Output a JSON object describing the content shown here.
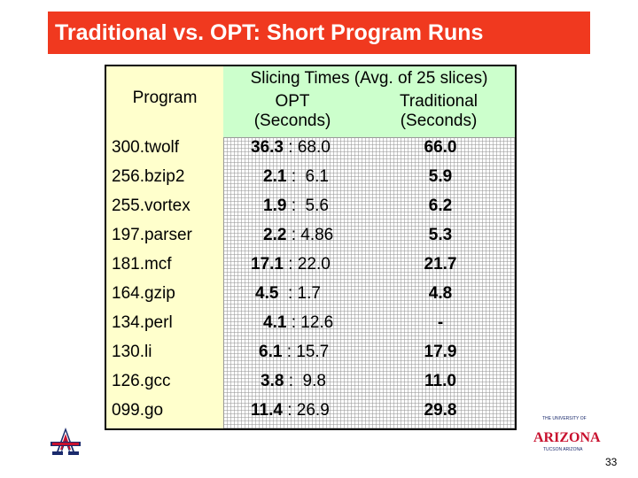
{
  "slide": {
    "title": "Traditional vs. OPT: Short Program Runs",
    "page_number": "33"
  },
  "table": {
    "header_program": "Program",
    "header_slicing": "Slicing Times (Avg. of 25 slices)",
    "header_opt_line1": "OPT",
    "header_opt_line2": "(Seconds)",
    "header_trad_line1": "Traditional",
    "header_trad_line2": "(Seconds)",
    "separator": ":",
    "rows": [
      {
        "program": "300.twolf",
        "opt": "36.3",
        "base": "68.0",
        "traditional": "66.0"
      },
      {
        "program": "256.bzip2",
        "opt": "2.1",
        "base": "6.1",
        "traditional": "5.9"
      },
      {
        "program": "255.vortex",
        "opt": "1.9",
        "base": "5.6",
        "traditional": "6.2"
      },
      {
        "program": "197.parser",
        "opt": "2.2",
        "base": "4.86",
        "traditional": "5.3"
      },
      {
        "program": "181.mcf",
        "opt": "17.1",
        "base": "22.0",
        "traditional": "21.7"
      },
      {
        "program": "164.gzip",
        "opt": "4.5",
        "base": "1.7",
        "traditional": "4.8"
      },
      {
        "program": "134.perl",
        "opt": "4.1",
        "base": "12.6",
        "traditional": "-"
      },
      {
        "program": "130.li",
        "opt": "6.1",
        "base": "15.7",
        "traditional": "17.9"
      },
      {
        "program": "126.gcc",
        "opt": "3.8",
        "base": "9.8",
        "traditional": "11.0"
      },
      {
        "program": "099.go",
        "opt": "11.4",
        "base": "26.9",
        "traditional": "29.8"
      }
    ]
  },
  "university_logo": {
    "top_text": "THE UNIVERSITY OF",
    "name": "ARIZONA",
    "bottom_text": "TUCSON ARIZONA"
  },
  "colors": {
    "title_bar": "#f0391f",
    "program_column": "#ffffcc",
    "header_band": "#ccffcc",
    "logo_red": "#c8102e",
    "logo_blue": "#1a2a6c"
  }
}
